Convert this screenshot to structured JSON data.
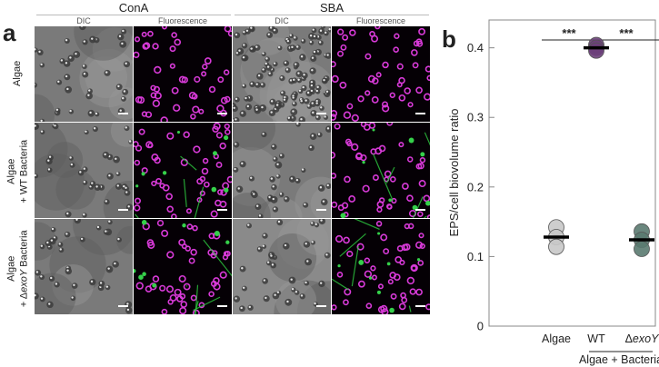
{
  "panel_a": {
    "letter": "a",
    "groups": [
      {
        "title": "ConA",
        "columns": [
          "DIC",
          "Fluorescence"
        ]
      },
      {
        "title": "SBA",
        "columns": [
          "DIC",
          "Fluorescence"
        ]
      }
    ],
    "rows": [
      {
        "line1": "Algae",
        "line2": "",
        "italic": ""
      },
      {
        "line1": "Algae",
        "line2": "+ WT Bacteria",
        "italic": ""
      },
      {
        "line1": "Algae",
        "line2_prefix": "+ Δ",
        "italic": "exoY",
        "line2_suffix": " Bacteria"
      }
    ]
  },
  "chart_data": {
    "type": "scatter",
    "panel_letter": "b",
    "ylabel": "EPS/cell biovolume ratio",
    "ylim": [
      0,
      0.44
    ],
    "yticks": [
      "0",
      "0.1",
      "0.2",
      "0.3",
      "0.4"
    ],
    "ytick_values": [
      0,
      0.1,
      0.2,
      0.3,
      0.4
    ],
    "categories": [
      "Algae",
      "WT",
      "ΔexoY"
    ],
    "category_prefix": [
      "",
      "",
      "Δ"
    ],
    "category_italic": [
      "",
      "",
      "exoY"
    ],
    "group_label": "Algae + Bacteria",
    "series": [
      {
        "category": "Algae",
        "color": "#c8c8c8",
        "points": [
          0.142,
          0.128,
          0.114
        ],
        "mean": 0.128
      },
      {
        "category": "WT",
        "color": "#6b3f7a",
        "points": [
          0.404,
          0.4,
          0.396
        ],
        "mean": 0.4
      },
      {
        "category": "ΔexoY",
        "color": "#5a7a70",
        "points": [
          0.136,
          0.124,
          0.111
        ],
        "mean": 0.124
      }
    ],
    "significance": [
      {
        "from": "Algae",
        "to": "WT",
        "label": "***"
      },
      {
        "from": "WT",
        "to": "ΔexoY",
        "label": "***"
      }
    ]
  }
}
